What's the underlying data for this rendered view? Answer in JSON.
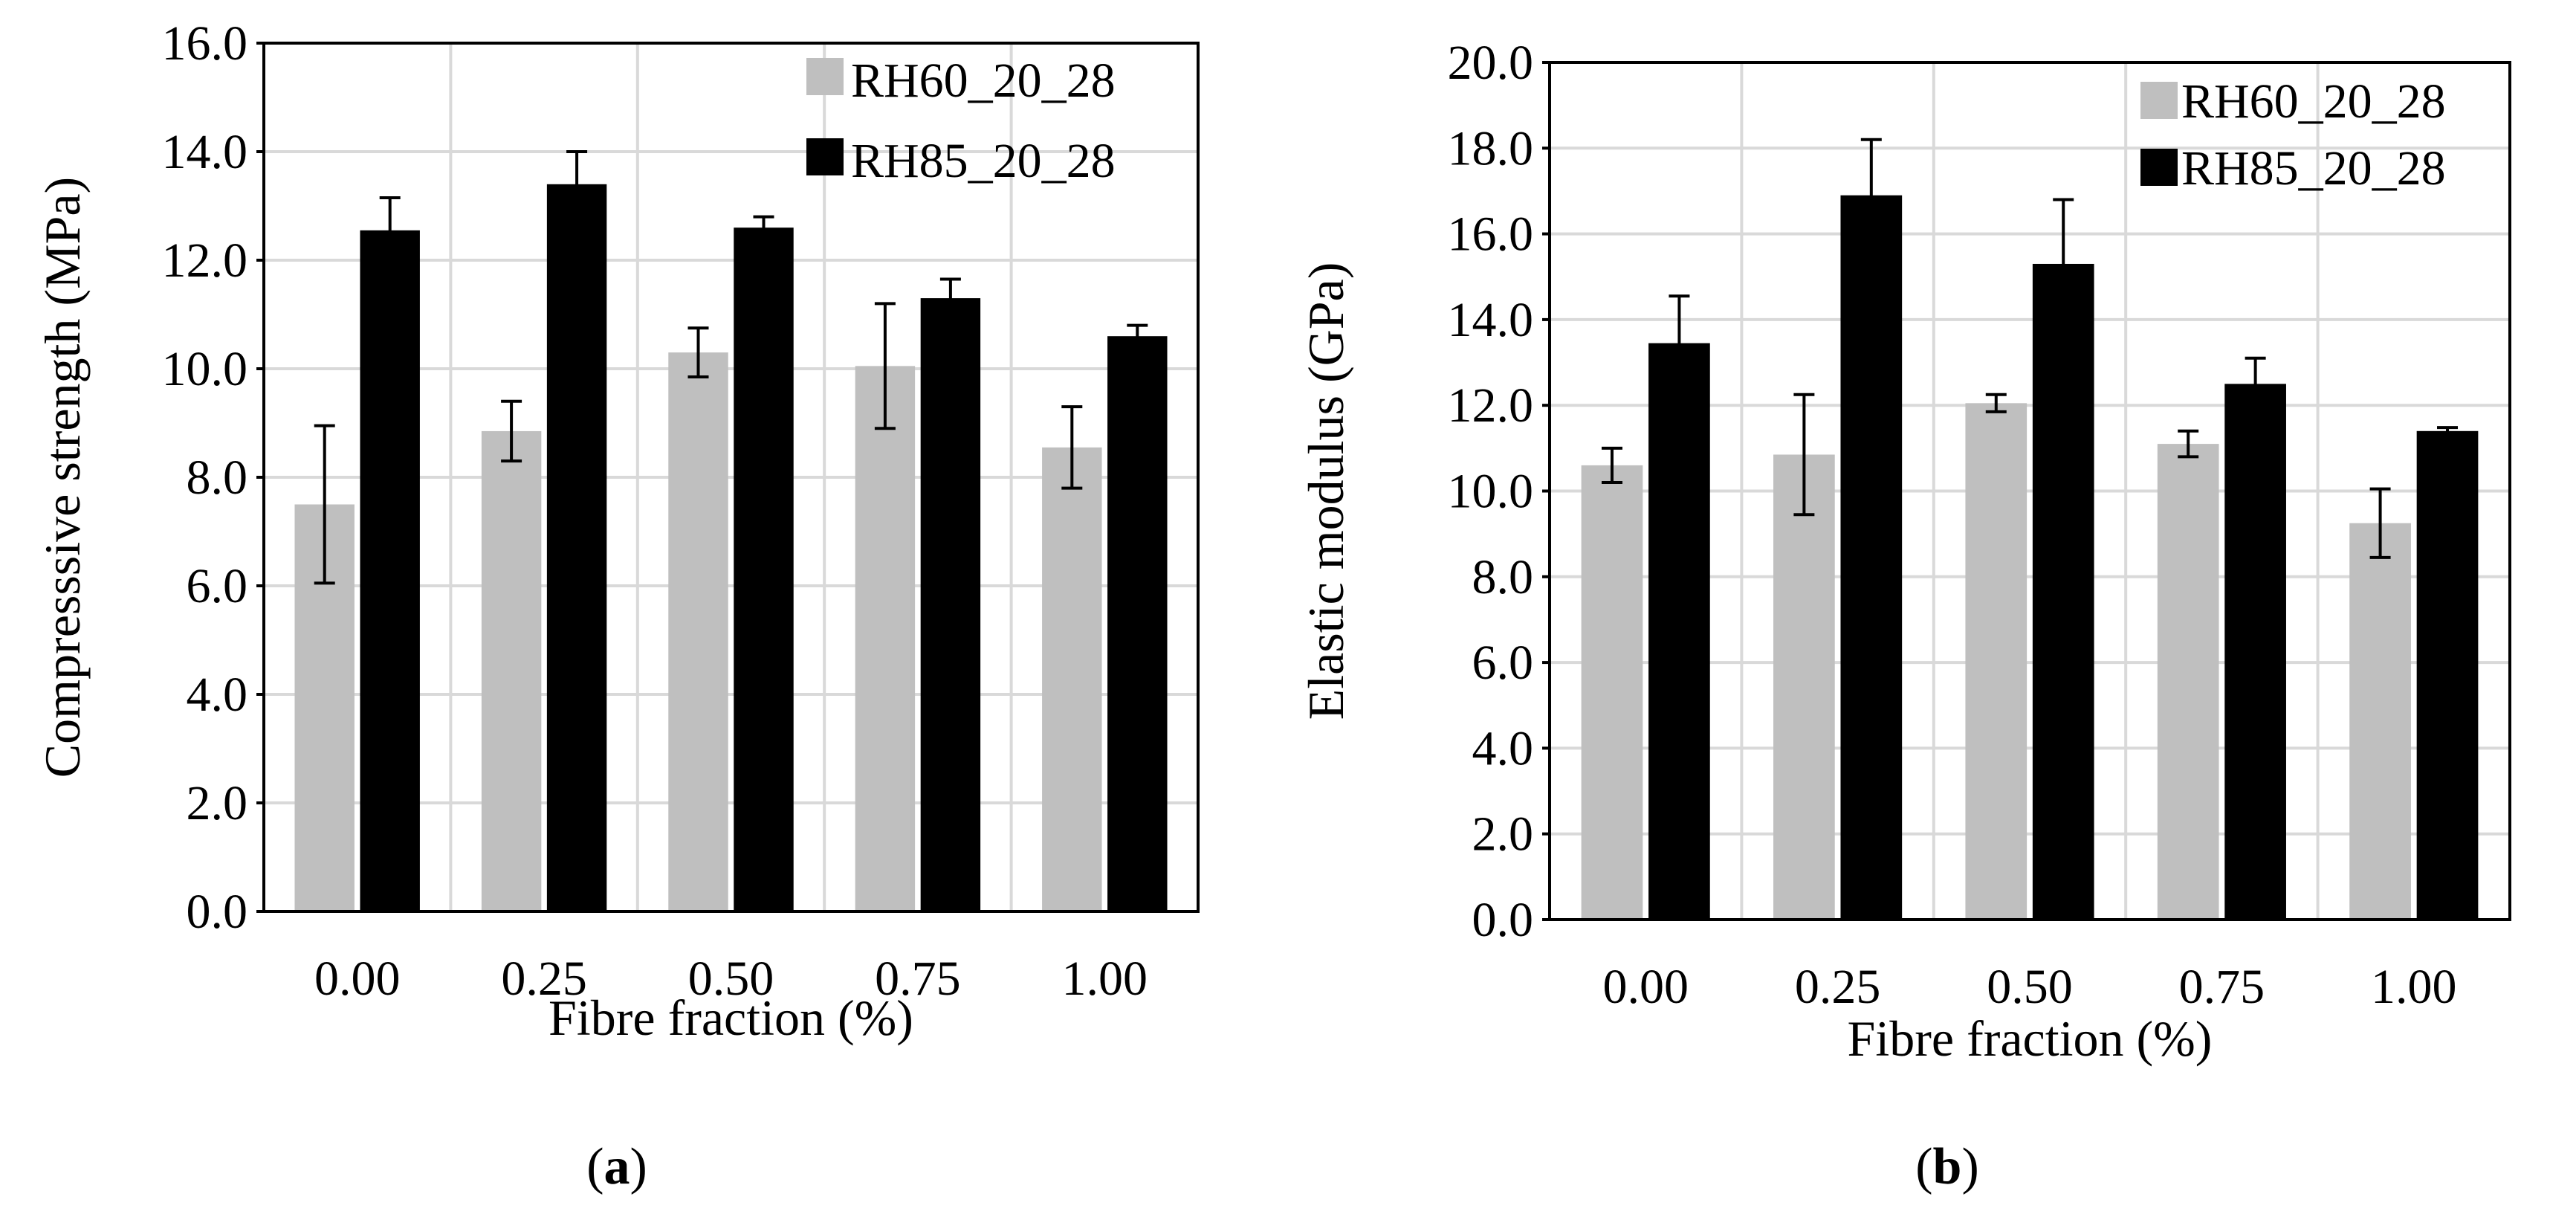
{
  "colors": {
    "series_light": "#bfbfbf",
    "series_dark": "#000000",
    "grid": "#d9d9d9"
  },
  "chart_data": [
    {
      "type": "bar",
      "panel": "a",
      "panel_label_open": "(",
      "panel_label_letter": "a",
      "panel_label_close": ")",
      "xlabel": "Fibre fraction (%)",
      "ylabel": "Compresssive strength (MPa)",
      "categories": [
        "0.00",
        "0.25",
        "0.50",
        "0.75",
        "1.00"
      ],
      "ylim": [
        0,
        16
      ],
      "yticks": [
        "0.0",
        "2.0",
        "4.0",
        "6.0",
        "8.0",
        "10.0",
        "12.0",
        "14.0",
        "16.0"
      ],
      "grid": true,
      "legend_position": "top-right",
      "series": [
        {
          "name": "RH60_20_28",
          "color": "#bfbfbf",
          "values": [
            7.5,
            8.85,
            10.3,
            10.05,
            8.55
          ],
          "errors": [
            1.45,
            0.55,
            0.45,
            1.15,
            0.75
          ]
        },
        {
          "name": "RH85_20_28",
          "color": "#000000",
          "values": [
            12.55,
            13.4,
            12.6,
            11.3,
            10.6
          ],
          "errors": [
            0.6,
            0.6,
            0.2,
            0.35,
            0.2
          ]
        }
      ]
    },
    {
      "type": "bar",
      "panel": "b",
      "panel_label_open": "(",
      "panel_label_letter": "b",
      "panel_label_close": ")",
      "xlabel": "Fibre fraction (%)",
      "ylabel": "Elastic modulus (GPa)",
      "categories": [
        "0.00",
        "0.25",
        "0.50",
        "0.75",
        "1.00"
      ],
      "ylim": [
        0,
        20
      ],
      "yticks": [
        "0.0",
        "2.0",
        "4.0",
        "6.0",
        "8.0",
        "10.0",
        "12.0",
        "14.0",
        "16.0",
        "18.0",
        "20.0"
      ],
      "grid": true,
      "legend_position": "top-right",
      "series": [
        {
          "name": "RH60_20_28",
          "color": "#bfbfbf",
          "values": [
            10.6,
            10.85,
            12.05,
            11.1,
            9.25
          ],
          "errors": [
            0.4,
            1.4,
            0.2,
            0.3,
            0.8
          ]
        },
        {
          "name": "RH85_20_28",
          "color": "#000000",
          "values": [
            13.45,
            16.9,
            15.3,
            12.5,
            11.4
          ],
          "errors": [
            1.1,
            1.3,
            1.5,
            0.6,
            0.08
          ]
        }
      ]
    }
  ]
}
